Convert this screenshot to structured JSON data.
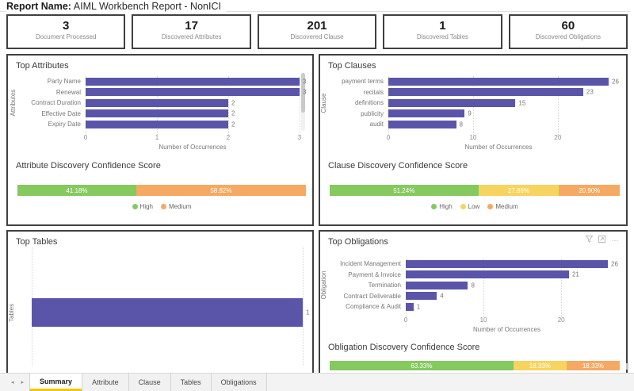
{
  "header": {
    "label": "Report Name:",
    "title": "AIML Workbench Report - NonICI"
  },
  "kpis": [
    {
      "value": "3",
      "label": "Document Processed"
    },
    {
      "value": "17",
      "label": "Discovered Attributes"
    },
    {
      "value": "201",
      "label": "Discovered Clause"
    },
    {
      "value": "1",
      "label": "Discovered Tables"
    },
    {
      "value": "60",
      "label": "Discovered Obligations"
    }
  ],
  "colors": {
    "bar": "#5A55A8",
    "High": "#85C95F",
    "Low": "#F7D45F",
    "Medium": "#F5A962",
    "tab_accent": "#F2C80F"
  },
  "panels": {
    "attributes": {
      "title": "Top Attributes",
      "conf_title": "Attribute Discovery Confidence Score"
    },
    "clauses": {
      "title": "Top Clauses",
      "conf_title": "Clause Discovery Confidence Score"
    },
    "tables": {
      "title": "Top Tables"
    },
    "obligations": {
      "title": "Top Obligations",
      "conf_title": "Obligation Discovery Confidence Score"
    }
  },
  "chart_data": [
    {
      "id": "attributes",
      "type": "bar",
      "categories": [
        "Party Name",
        "Renewal",
        "Contract Duration",
        "Effective Date",
        "Expiry Date"
      ],
      "values": [
        3,
        3,
        2,
        2,
        2
      ],
      "title": "Top Attributes",
      "xlabel": "Number of Occurrences",
      "ylabel": "Attributes",
      "xticks": [
        0,
        1,
        2,
        3
      ],
      "xlim": [
        0,
        3
      ],
      "grid": true,
      "bar_color": "#5A55A8"
    },
    {
      "id": "clauses",
      "type": "bar",
      "categories": [
        "payment terms",
        "recitals",
        "definitions",
        "publicity",
        "audit"
      ],
      "values": [
        26,
        23,
        15,
        9,
        8
      ],
      "title": "Top Clauses",
      "xlabel": "Number of Occurrences",
      "ylabel": "Clause",
      "xticks": [
        0,
        10,
        20
      ],
      "xlim": [
        0,
        26
      ],
      "grid": true,
      "bar_color": "#5A55A8"
    },
    {
      "id": "tables",
      "type": "bar",
      "categories": [
        ""
      ],
      "values": [
        1
      ],
      "title": "Top Tables",
      "xlabel": "",
      "ylabel": "Tables",
      "xticks": [
        0,
        1
      ],
      "xlim": [
        0,
        1
      ],
      "grid": true,
      "bar_color": "#5A55A8"
    },
    {
      "id": "obligations",
      "type": "bar",
      "categories": [
        "Incident Management",
        "Payment & Invoice",
        "Termination",
        "Contract Deliverable",
        "Compliance & Audit"
      ],
      "values": [
        26,
        21,
        8,
        4,
        1
      ],
      "title": "Top Obligations",
      "xlabel": "Number of Occurrences",
      "ylabel": "Obligation",
      "xticks": [
        0,
        10,
        20
      ],
      "xlim": [
        0,
        26
      ],
      "grid": true,
      "bar_color": "#5A55A8"
    }
  ],
  "confidence": {
    "attribute": {
      "title": "Attribute Discovery Confidence Score",
      "segments": [
        {
          "label": "High",
          "value": 41.18,
          "display": "41.18%"
        },
        {
          "label": "Medium",
          "value": 58.82,
          "display": "58.82%"
        }
      ],
      "legend": [
        "High",
        "Medium"
      ]
    },
    "clause": {
      "title": "Clause Discovery Confidence Score",
      "segments": [
        {
          "label": "High",
          "value": 51.24,
          "display": "51.24%"
        },
        {
          "label": "Low",
          "value": 27.86,
          "display": "27.86%"
        },
        {
          "label": "Medium",
          "value": 20.9,
          "display": "20.90%"
        }
      ],
      "legend": [
        "High",
        "Low",
        "Medium"
      ]
    },
    "obligation": {
      "title": "Obligation Discovery Confidence Score",
      "segments": [
        {
          "label": "High",
          "value": 63.33,
          "display": "63.33%"
        },
        {
          "label": "Low",
          "value": 18.33,
          "display": "18.33%"
        },
        {
          "label": "Medium",
          "value": 18.33,
          "display": "18.33%"
        }
      ],
      "legend": []
    }
  },
  "tabs": {
    "items": [
      "Summary",
      "Attribute",
      "Clause",
      "Tables",
      "Obligations"
    ],
    "active": "Summary",
    "prev_icon": "◂",
    "next_icon": "▸"
  },
  "icons": {
    "more_options": "…"
  }
}
